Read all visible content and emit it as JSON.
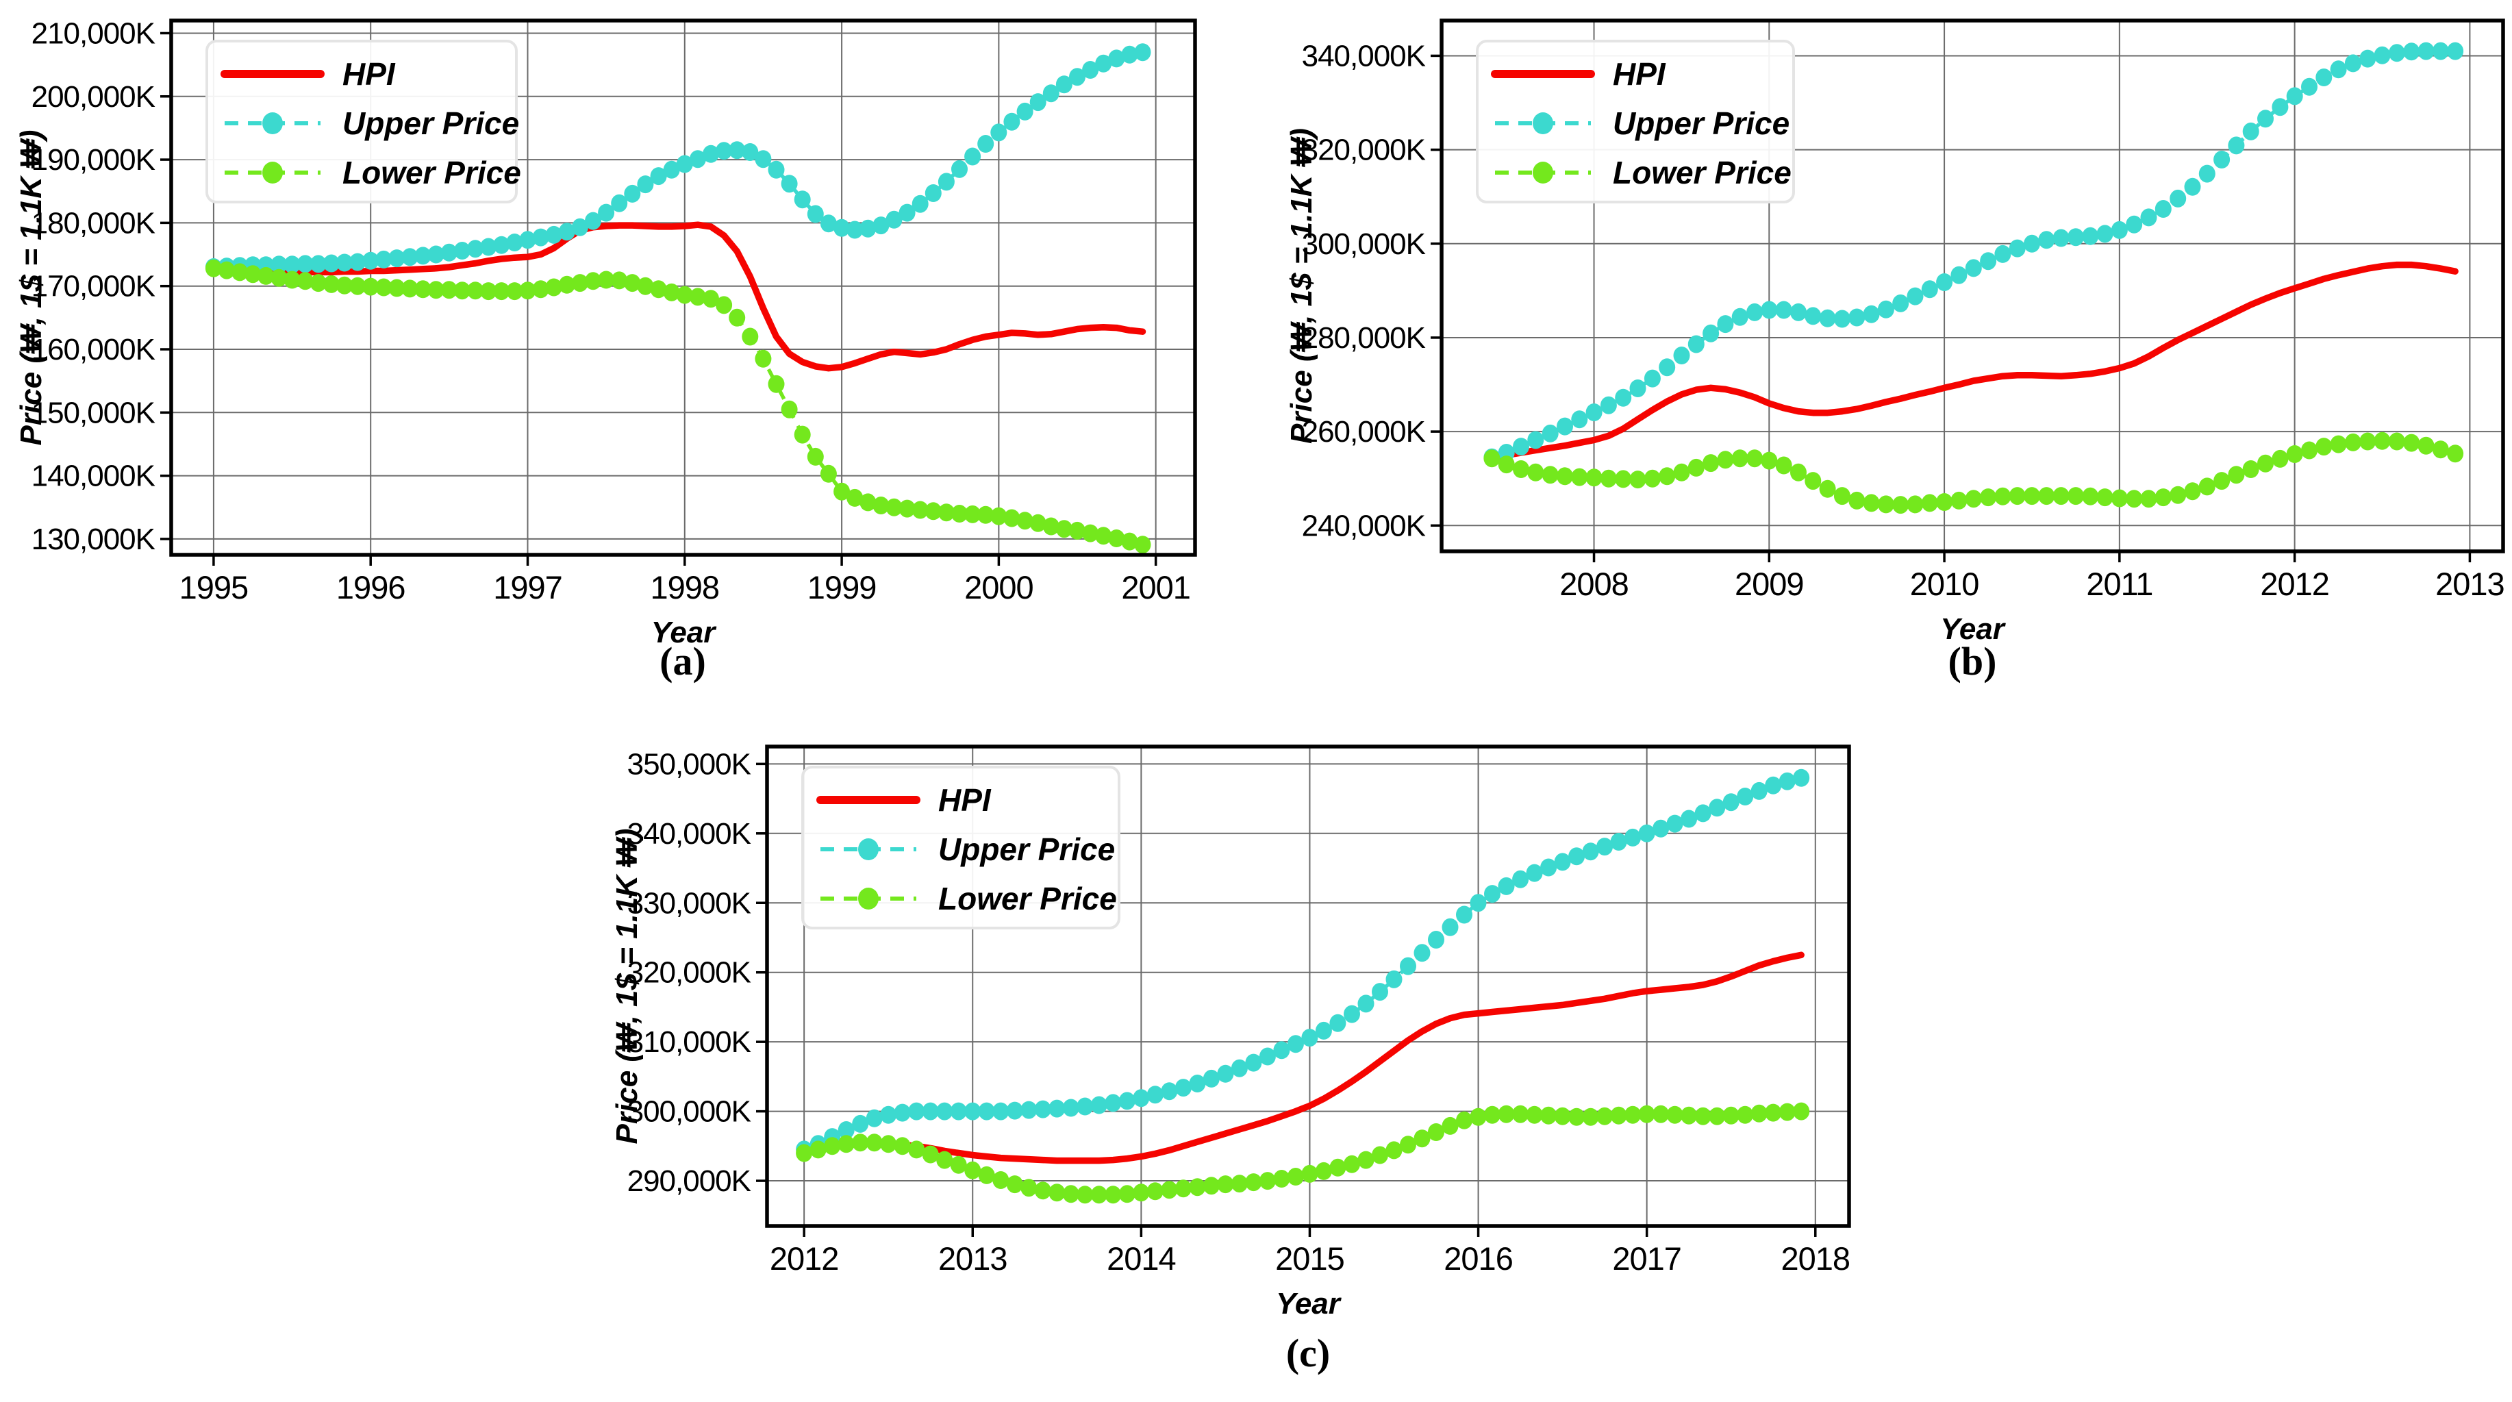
{
  "figure": {
    "y_axis_label": "Price (₩, 1$ = 1.1K ₩)",
    "x_axis_label": "Year",
    "legend_items": [
      "HPI",
      "Upper Price",
      "Lower Price"
    ],
    "colors": {
      "hpi": "#f50400",
      "upper": "#3cd9cf",
      "lower": "#74e81d",
      "grid": "#6b6b6b",
      "axis": "#000000",
      "legend_border": "#e4e4e4",
      "background": "#ffffff"
    }
  },
  "chart_data": [
    {
      "id": "a",
      "caption": "(a)",
      "type": "line",
      "title": "",
      "xlabel": "Year",
      "ylabel": "Price (₩, 1$ = 1.1K ₩)",
      "x_start": 1995.0,
      "x_step": 0.08333,
      "x_ticks": [
        1995,
        1996,
        1997,
        1998,
        1999,
        2000,
        2001
      ],
      "x_tick_labels": [
        "1995",
        "1996",
        "1997",
        "1998",
        "1999",
        "2000",
        "2001"
      ],
      "y_ticks": [
        130000,
        140000,
        150000,
        160000,
        170000,
        180000,
        190000,
        200000,
        210000
      ],
      "y_tick_labels": [
        "130,000K",
        "140,000K",
        "150,000K",
        "160,000K",
        "170,000K",
        "180,000K",
        "190,000K",
        "200,000K",
        "210,000K"
      ],
      "xlim": [
        1994.73,
        2001.25
      ],
      "ylim": [
        127500,
        212000
      ],
      "grid": true,
      "legend_position": "upper-left",
      "series": [
        {
          "key": "hpi",
          "name": "HPI",
          "style": "solid",
          "values": [
            172500,
            172500,
            172400,
            172400,
            172300,
            172300,
            172200,
            172200,
            172200,
            172200,
            172300,
            172300,
            172400,
            172400,
            172500,
            172600,
            172700,
            172800,
            173000,
            173300,
            173600,
            174000,
            174300,
            174500,
            174600,
            175000,
            176000,
            177500,
            178800,
            179300,
            179500,
            179600,
            179600,
            179500,
            179400,
            179400,
            179500,
            179700,
            179400,
            178000,
            175500,
            171500,
            166500,
            162000,
            159300,
            158000,
            157300,
            157000,
            157200,
            157800,
            158500,
            159200,
            159600,
            159400,
            159200,
            159500,
            160000,
            160800,
            161500,
            162000,
            162300,
            162600,
            162500,
            162300,
            162400,
            162800,
            163200,
            163400,
            163500,
            163400,
            163000,
            162800
          ]
        },
        {
          "key": "upper",
          "name": "Upper Price",
          "style": "dashed-marker",
          "values": [
            173000,
            173100,
            173200,
            173300,
            173300,
            173400,
            173400,
            173500,
            173500,
            173600,
            173700,
            173800,
            174000,
            174200,
            174400,
            174600,
            174800,
            175000,
            175300,
            175600,
            175900,
            176200,
            176500,
            176900,
            177300,
            177700,
            178100,
            178600,
            179300,
            180300,
            181600,
            183100,
            184600,
            186100,
            187400,
            188400,
            189300,
            190100,
            190900,
            191400,
            191500,
            191200,
            190100,
            188400,
            186200,
            183700,
            181400,
            179900,
            179200,
            178900,
            179100,
            179600,
            180500,
            181600,
            183000,
            184700,
            186500,
            188500,
            190500,
            192500,
            194300,
            196000,
            197600,
            199100,
            200500,
            201900,
            203100,
            204200,
            205200,
            206000,
            206600,
            207000
          ]
        },
        {
          "key": "lower",
          "name": "Lower Price",
          "style": "dashed-marker",
          "values": [
            172800,
            172500,
            172200,
            171900,
            171600,
            171300,
            171000,
            170800,
            170500,
            170300,
            170100,
            170000,
            169900,
            169800,
            169700,
            169600,
            169500,
            169400,
            169400,
            169300,
            169300,
            169200,
            169200,
            169200,
            169300,
            169500,
            169800,
            170200,
            170500,
            170800,
            171000,
            170900,
            170500,
            170000,
            169500,
            169000,
            168600,
            168300,
            168000,
            167000,
            165000,
            162000,
            158500,
            154500,
            150500,
            146500,
            143000,
            140300,
            137500,
            136500,
            135800,
            135300,
            135000,
            134800,
            134600,
            134400,
            134200,
            134000,
            133900,
            133800,
            133600,
            133300,
            132900,
            132500,
            132000,
            131600,
            131300,
            130900,
            130500,
            130100,
            129600,
            129100
          ]
        }
      ]
    },
    {
      "id": "b",
      "caption": "(b)",
      "type": "line",
      "title": "",
      "xlabel": "Year",
      "ylabel": "Price (₩, 1$ = 1.1K ₩)",
      "x_start": 2007.417,
      "x_step": 0.08333,
      "x_ticks": [
        2008,
        2009,
        2010,
        2011,
        2012,
        2013
      ],
      "x_tick_labels": [
        "2008",
        "2009",
        "2010",
        "2011",
        "2012",
        "2013"
      ],
      "y_ticks": [
        240000,
        260000,
        280000,
        300000,
        320000,
        340000
      ],
      "y_tick_labels": [
        "240,000K",
        "260,000K",
        "280,000K",
        "300,000K",
        "320,000K",
        "340,000K"
      ],
      "xlim": [
        2007.13,
        2013.19
      ],
      "ylim": [
        234500,
        347500
      ],
      "grid": true,
      "legend_position": "upper-left",
      "series": [
        {
          "key": "hpi",
          "name": "HPI",
          "style": "solid",
          "values": [
            254500,
            255000,
            255500,
            256000,
            256500,
            257000,
            257600,
            258200,
            259100,
            260600,
            262600,
            264600,
            266400,
            267900,
            268900,
            269300,
            269000,
            268300,
            267300,
            266000,
            265000,
            264300,
            264000,
            264000,
            264300,
            264800,
            265500,
            266300,
            267000,
            267800,
            268500,
            269300,
            270000,
            270800,
            271300,
            271800,
            272000,
            272000,
            271900,
            271800,
            272000,
            272300,
            272800,
            273500,
            274500,
            276000,
            277800,
            279500,
            281000,
            282500,
            284000,
            285500,
            287000,
            288300,
            289500,
            290500,
            291500,
            292500,
            293300,
            294000,
            294700,
            295200,
            295500,
            295500,
            295200,
            294700,
            294100
          ]
        },
        {
          "key": "upper",
          "name": "Upper Price",
          "style": "dashed-marker",
          "values": [
            254500,
            255500,
            256800,
            258200,
            259600,
            261100,
            262600,
            264100,
            265600,
            267200,
            269200,
            271300,
            273700,
            276200,
            278600,
            280900,
            282900,
            284400,
            285400,
            285900,
            285900,
            285400,
            284600,
            284100,
            284000,
            284300,
            285000,
            286000,
            287300,
            288800,
            290300,
            291800,
            293300,
            294800,
            296300,
            297800,
            299000,
            300000,
            300800,
            301200,
            301400,
            301600,
            302100,
            302900,
            304100,
            305600,
            307400,
            309600,
            312100,
            314900,
            317900,
            320900,
            323900,
            326600,
            329100,
            331400,
            333400,
            335400,
            337100,
            338400,
            339400,
            340100,
            340600,
            340900,
            341000,
            341000,
            341000
          ]
        },
        {
          "key": "lower",
          "name": "Lower Price",
          "style": "dashed-marker",
          "values": [
            254300,
            253000,
            252000,
            251300,
            250800,
            250500,
            250300,
            250200,
            250000,
            249900,
            249800,
            250000,
            250500,
            251300,
            252300,
            253300,
            254000,
            254300,
            254300,
            253800,
            252800,
            251300,
            249500,
            247800,
            246300,
            245300,
            244800,
            244500,
            244400,
            244500,
            244800,
            245000,
            245300,
            245700,
            246000,
            246200,
            246300,
            246300,
            246300,
            246300,
            246300,
            246200,
            246000,
            245800,
            245700,
            245700,
            246000,
            246500,
            247300,
            248300,
            249500,
            250800,
            252000,
            253200,
            254200,
            255200,
            256000,
            256800,
            257300,
            257700,
            257900,
            258000,
            257900,
            257600,
            257000,
            256200,
            255300
          ]
        }
      ]
    },
    {
      "id": "c",
      "caption": "(c)",
      "type": "line",
      "title": "",
      "xlabel": "Year",
      "ylabel": "Price (₩, 1$ = 1.1K ₩)",
      "x_start": 2012.0,
      "x_step": 0.08333,
      "x_ticks": [
        2012,
        2013,
        2014,
        2015,
        2016,
        2017,
        2018
      ],
      "x_tick_labels": [
        "2012",
        "2013",
        "2014",
        "2015",
        "2016",
        "2017",
        "2018"
      ],
      "y_ticks": [
        290000,
        300000,
        310000,
        320000,
        330000,
        340000,
        350000
      ],
      "y_tick_labels": [
        "290,000K",
        "300,000K",
        "310,000K",
        "320,000K",
        "330,000K",
        "340,000K",
        "350,000K"
      ],
      "xlim": [
        2011.78,
        2018.2
      ],
      "ylim": [
        283500,
        352500
      ],
      "grid": true,
      "legend_position": "upper-left",
      "series": [
        {
          "key": "hpi",
          "name": "HPI",
          "style": "solid",
          "values": [
            294300,
            294800,
            295200,
            295400,
            295500,
            295500,
            295400,
            295200,
            295000,
            294700,
            294300,
            294000,
            293700,
            293500,
            293300,
            293200,
            293100,
            293000,
            292900,
            292900,
            292900,
            292900,
            293000,
            293200,
            293500,
            293900,
            294400,
            295000,
            295600,
            296200,
            296800,
            297400,
            298000,
            298600,
            299300,
            300000,
            300800,
            301800,
            303000,
            304300,
            305700,
            307200,
            308700,
            310200,
            311500,
            312600,
            313400,
            313900,
            314100,
            314300,
            314500,
            314700,
            314900,
            315100,
            315300,
            315600,
            315900,
            316200,
            316600,
            317000,
            317300,
            317500,
            317700,
            317900,
            318200,
            318700,
            319400,
            320200,
            321000,
            321600,
            322100,
            322500
          ]
        },
        {
          "key": "upper",
          "name": "Upper Price",
          "style": "dashed-marker",
          "values": [
            294500,
            295300,
            296300,
            297300,
            298200,
            299000,
            299500,
            299800,
            300000,
            300000,
            300000,
            300000,
            300000,
            300000,
            300000,
            300100,
            300200,
            300300,
            300400,
            300500,
            300700,
            300900,
            301200,
            301500,
            301900,
            302400,
            302900,
            303400,
            304000,
            304700,
            305400,
            306200,
            307000,
            307900,
            308800,
            309700,
            310600,
            311600,
            312700,
            314000,
            315500,
            317200,
            319000,
            320900,
            322800,
            324700,
            326500,
            328300,
            330000,
            331300,
            332400,
            333400,
            334300,
            335100,
            335900,
            336700,
            337400,
            338100,
            338800,
            339400,
            340000,
            340700,
            341400,
            342100,
            342900,
            343700,
            344500,
            345300,
            346100,
            346900,
            347500,
            348000
          ]
        },
        {
          "key": "lower",
          "name": "Lower Price",
          "style": "dashed-marker",
          "values": [
            294000,
            294500,
            295000,
            295300,
            295500,
            295500,
            295300,
            295000,
            294500,
            293800,
            293000,
            292300,
            291500,
            290800,
            290100,
            289500,
            289000,
            288600,
            288300,
            288100,
            288000,
            288000,
            288000,
            288100,
            288300,
            288500,
            288700,
            288900,
            289100,
            289300,
            289500,
            289600,
            289800,
            290000,
            290300,
            290600,
            291000,
            291400,
            291900,
            292400,
            293000,
            293700,
            294400,
            295200,
            296100,
            297000,
            297900,
            298700,
            299200,
            299500,
            299600,
            299600,
            299500,
            299400,
            299300,
            299200,
            299200,
            299300,
            299400,
            299500,
            299600,
            299600,
            299500,
            299400,
            299300,
            299300,
            299400,
            299500,
            299700,
            299800,
            299900,
            300000
          ]
        }
      ]
    }
  ]
}
